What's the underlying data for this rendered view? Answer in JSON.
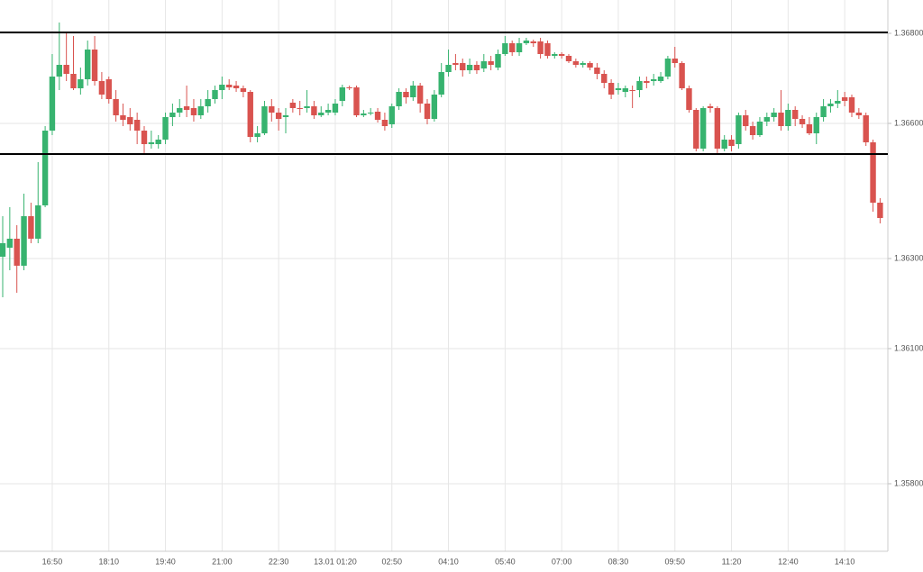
{
  "chart_data": {
    "type": "candlestick",
    "categories": [
      null,
      null,
      null,
      null,
      null,
      null,
      null,
      "16:50",
      null,
      null,
      null,
      null,
      null,
      null,
      null,
      "18:10",
      null,
      null,
      null,
      null,
      null,
      null,
      null,
      "19:40",
      null,
      null,
      null,
      null,
      null,
      null,
      null,
      "21:00",
      null,
      null,
      null,
      null,
      null,
      null,
      null,
      "22:30",
      null,
      null,
      null,
      null,
      null,
      null,
      null,
      "13.01 01:20",
      null,
      null,
      null,
      null,
      null,
      null,
      null,
      "02:50",
      null,
      null,
      null,
      null,
      null,
      null,
      null,
      "04:10",
      null,
      null,
      null,
      null,
      null,
      null,
      null,
      "05:40",
      null,
      null,
      null,
      null,
      null,
      null,
      null,
      "07:00",
      null,
      null,
      null,
      null,
      null,
      null,
      null,
      "08:30",
      null,
      null,
      null,
      null,
      null,
      null,
      null,
      "09:50",
      null,
      null,
      null,
      null,
      null,
      null,
      null,
      "11:20",
      null,
      null,
      null,
      null,
      null,
      null,
      null,
      "12:40",
      null,
      null,
      null,
      null,
      null,
      null,
      null,
      "14:10",
      null,
      null,
      null,
      null,
      null
    ],
    "open": [
      1.36304,
      1.36324,
      1.36344,
      1.36284,
      1.36394,
      1.36344,
      1.36418,
      1.36584,
      1.36704,
      1.3673,
      1.3671,
      1.36678,
      1.36698,
      1.36764,
      1.36694,
      1.36698,
      1.36654,
      1.36618,
      1.36614,
      1.36608,
      1.36584,
      1.36554,
      1.36554,
      1.36564,
      1.36614,
      1.36624,
      1.36638,
      1.36634,
      1.36618,
      1.36638,
      1.36654,
      1.36674,
      1.36686,
      1.36684,
      1.36678,
      1.3667,
      1.3657,
      1.36578,
      1.36638,
      1.36624,
      1.36614,
      1.36646,
      1.36634,
      1.36634,
      1.36638,
      1.36618,
      1.36624,
      1.36624,
      1.3665,
      1.3668,
      1.3668,
      1.36618,
      1.36622,
      1.36626,
      1.36608,
      1.36598,
      1.36638,
      1.3667,
      1.36658,
      1.36684,
      1.36644,
      1.3661,
      1.36664,
      1.36714,
      1.36734,
      1.36734,
      1.36718,
      1.3673,
      1.36722,
      1.36738,
      1.36724,
      1.36754,
      1.36778,
      1.36758,
      1.36778,
      1.36782,
      1.36782,
      1.36778,
      1.3675,
      1.36754,
      1.3675,
      1.36738,
      1.3673,
      1.36734,
      1.36724,
      1.3671,
      1.3669,
      1.36674,
      1.3667,
      1.36674,
      1.36674,
      1.36694,
      1.36694,
      1.36694,
      1.36704,
      1.36744,
      1.36734,
      1.36678,
      1.3663,
      1.36544,
      1.36638,
      1.36634,
      1.36544,
      1.36564,
      1.36554,
      1.36618,
      1.36594,
      1.36574,
      1.36604,
      1.36614,
      1.36624,
      1.36594,
      1.3663,
      1.3661,
      1.36598,
      1.36578,
      1.36614,
      1.36638,
      1.36644,
      1.36658,
      1.36658,
      1.36624,
      1.36618,
      1.36558,
      1.36424
    ],
    "high": [
      1.36394,
      1.36414,
      1.36374,
      1.36444,
      1.36424,
      1.36514,
      1.36594,
      1.36754,
      1.36824,
      1.36804,
      1.36794,
      1.36724,
      1.36784,
      1.36794,
      1.36714,
      1.36704,
      1.36674,
      1.36644,
      1.36634,
      1.36624,
      1.36594,
      1.36584,
      1.36574,
      1.36624,
      1.36644,
      1.36654,
      1.36684,
      1.36654,
      1.36654,
      1.36674,
      1.36684,
      1.36704,
      1.36698,
      1.36694,
      1.36684,
      1.36674,
      1.36594,
      1.3665,
      1.36654,
      1.36634,
      1.36634,
      1.36654,
      1.3665,
      1.36674,
      1.3665,
      1.36638,
      1.36644,
      1.36654,
      1.36686,
      1.36684,
      1.36684,
      1.3663,
      1.36634,
      1.36634,
      1.36624,
      1.36644,
      1.36678,
      1.36678,
      1.36694,
      1.3669,
      1.36654,
      1.36674,
      1.36734,
      1.36764,
      1.36754,
      1.36744,
      1.36744,
      1.36738,
      1.36754,
      1.3675,
      1.36764,
      1.36794,
      1.36784,
      1.3679,
      1.3679,
      1.36786,
      1.3679,
      1.36784,
      1.36758,
      1.36758,
      1.36754,
      1.36744,
      1.36738,
      1.36738,
      1.36734,
      1.36718,
      1.36698,
      1.3669,
      1.36684,
      1.36684,
      1.36704,
      1.36704,
      1.3671,
      1.36714,
      1.3675,
      1.3677,
      1.36738,
      1.36684,
      1.36634,
      1.36638,
      1.36644,
      1.36638,
      1.36574,
      1.36574,
      1.36624,
      1.3663,
      1.36604,
      1.36614,
      1.36624,
      1.36634,
      1.36674,
      1.36644,
      1.36638,
      1.36618,
      1.36614,
      1.36624,
      1.36654,
      1.36654,
      1.36674,
      1.3667,
      1.36664,
      1.36634,
      1.36624,
      1.36564,
      1.36434
    ],
    "low": [
      1.36214,
      1.36274,
      1.36224,
      1.36274,
      1.36334,
      1.36334,
      1.36414,
      1.36574,
      1.36674,
      1.36694,
      1.36674,
      1.36664,
      1.36684,
      1.36684,
      1.36654,
      1.36644,
      1.36604,
      1.36594,
      1.36584,
      1.36554,
      1.36534,
      1.36544,
      1.36544,
      1.36554,
      1.36594,
      1.36614,
      1.36614,
      1.36604,
      1.3661,
      1.36624,
      1.36644,
      1.36654,
      1.36674,
      1.3667,
      1.36658,
      1.36558,
      1.36558,
      1.36574,
      1.36604,
      1.36584,
      1.36578,
      1.36624,
      1.36618,
      1.36624,
      1.3661,
      1.36614,
      1.36618,
      1.36618,
      1.36638,
      1.36674,
      1.36614,
      1.36614,
      1.36618,
      1.36602,
      1.36584,
      1.3659,
      1.3663,
      1.36644,
      1.3665,
      1.36624,
      1.36598,
      1.36604,
      1.36658,
      1.36704,
      1.36718,
      1.36704,
      1.3671,
      1.3671,
      1.36714,
      1.36718,
      1.36718,
      1.3675,
      1.3675,
      1.3675,
      1.36774,
      1.3677,
      1.36744,
      1.36744,
      1.36744,
      1.36744,
      1.36734,
      1.36724,
      1.36724,
      1.36718,
      1.36698,
      1.36678,
      1.36654,
      1.36664,
      1.36658,
      1.36634,
      1.36658,
      1.36678,
      1.36684,
      1.3669,
      1.36698,
      1.36724,
      1.36674,
      1.36624,
      1.36538,
      1.36538,
      1.36624,
      1.36534,
      1.36538,
      1.36538,
      1.36544,
      1.36584,
      1.36564,
      1.3657,
      1.36594,
      1.36604,
      1.36584,
      1.36584,
      1.36594,
      1.3659,
      1.36574,
      1.36554,
      1.36604,
      1.36624,
      1.36634,
      1.36638,
      1.36614,
      1.3661,
      1.3655,
      1.36404,
      1.36378
    ],
    "close": [
      1.36334,
      1.36344,
      1.36284,
      1.36394,
      1.36344,
      1.36418,
      1.36584,
      1.36704,
      1.3673,
      1.3671,
      1.36678,
      1.36698,
      1.36764,
      1.36694,
      1.36664,
      1.36654,
      1.36618,
      1.36608,
      1.36598,
      1.36584,
      1.36554,
      1.36558,
      1.36564,
      1.36614,
      1.36624,
      1.36634,
      1.3663,
      1.36618,
      1.36638,
      1.36654,
      1.36674,
      1.36686,
      1.3668,
      1.36678,
      1.3667,
      1.3657,
      1.36578,
      1.36638,
      1.36624,
      1.3661,
      1.36618,
      1.36634,
      1.36632,
      1.36638,
      1.36618,
      1.36624,
      1.3663,
      1.36644,
      1.3668,
      1.36678,
      1.36618,
      1.36622,
      1.36624,
      1.36608,
      1.36594,
      1.36638,
      1.3667,
      1.36658,
      1.36684,
      1.36644,
      1.3661,
      1.36664,
      1.36714,
      1.3673,
      1.3673,
      1.36718,
      1.3673,
      1.36718,
      1.36738,
      1.3673,
      1.36754,
      1.36778,
      1.36758,
      1.36778,
      1.36784,
      1.36778,
      1.36754,
      1.3675,
      1.36754,
      1.3675,
      1.36738,
      1.3673,
      1.36734,
      1.36724,
      1.3671,
      1.3669,
      1.36664,
      1.36678,
      1.36678,
      1.36672,
      1.36694,
      1.3669,
      1.36698,
      1.36704,
      1.36744,
      1.36734,
      1.36678,
      1.3663,
      1.36544,
      1.36634,
      1.36634,
      1.36544,
      1.36564,
      1.3655,
      1.36618,
      1.36594,
      1.36574,
      1.36604,
      1.36614,
      1.36624,
      1.36594,
      1.3663,
      1.3661,
      1.36598,
      1.36578,
      1.36614,
      1.36638,
      1.36644,
      1.3665,
      1.3665,
      1.36624,
      1.36618,
      1.36558,
      1.36424,
      1.3639
    ],
    "up_color": "#37b36f",
    "down_color": "#d9534f",
    "ylim": [
      1.3565,
      1.36874
    ],
    "yticks": [
      {
        "value": 1.368,
        "label": "1.36800"
      },
      {
        "value": 1.366,
        "label": "1.36600"
      },
      {
        "value": 1.363,
        "label": "1.36300"
      },
      {
        "value": 1.361,
        "label": "1.36100"
      },
      {
        "value": 1.358,
        "label": "1.35800"
      }
    ],
    "hlines": [
      1.36802,
      1.36532
    ],
    "grid": true
  }
}
